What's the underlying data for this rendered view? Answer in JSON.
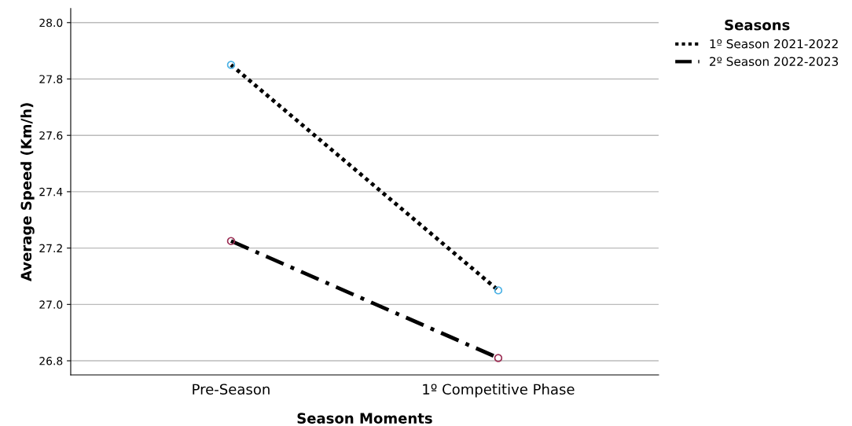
{
  "chart_data": {
    "type": "line",
    "xlabel": "Season Moments",
    "ylabel": "Average Speed (Km/h)",
    "legend_title": "Seasons",
    "categories": [
      "Pre-Season",
      "1º Competitive Phase"
    ],
    "series": [
      {
        "name": "1º Season 2021-2022",
        "color": "#000000",
        "colors": [
          "#4db3e6",
          "#4db3e6"
        ],
        "line_style": "dotted",
        "values": [
          27.85,
          27.05
        ]
      },
      {
        "name": "2º Season 2022-2023",
        "color": "#000000",
        "colors": [
          "#9c2f55",
          "#9c2f55"
        ],
        "line_style": "dashdot",
        "values": [
          27.225,
          26.81
        ]
      }
    ],
    "ylim": [
      26.75,
      28.05
    ],
    "yticks": [
      {
        "value": 26.8,
        "label": "26.8"
      },
      {
        "value": 27.0,
        "label": "27.0"
      },
      {
        "value": 27.2,
        "label": "27.2"
      },
      {
        "value": 27.4,
        "label": "27.4"
      },
      {
        "value": 27.6,
        "label": "27.6"
      },
      {
        "value": 27.8,
        "label": "27.8"
      },
      {
        "value": 28.0,
        "label": "28.0"
      }
    ],
    "grid": "y",
    "legend": "top right",
    "marker": "circle"
  }
}
